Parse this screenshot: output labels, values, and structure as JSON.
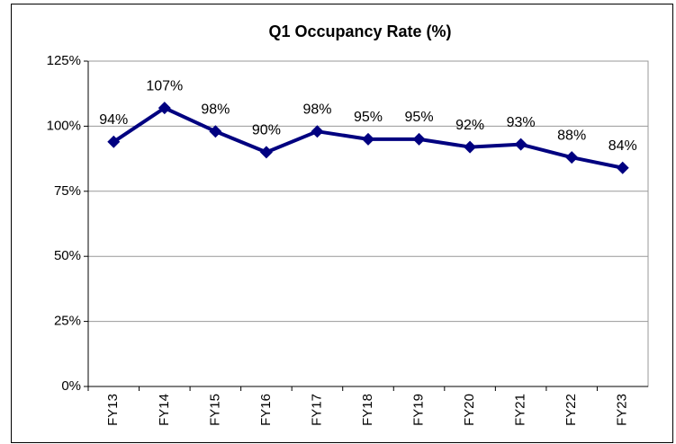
{
  "chart_data": {
    "type": "line",
    "title": "Q1 Occupancy Rate (%)",
    "categories": [
      "FY13",
      "FY14",
      "FY15",
      "FY16",
      "FY17",
      "FY18",
      "FY19",
      "FY20",
      "FY21",
      "FY22",
      "FY23"
    ],
    "series": [
      {
        "name": "Q1 Occupancy Rate",
        "color": "#000080",
        "values": [
          94,
          107,
          98,
          90,
          98,
          95,
          95,
          92,
          93,
          88,
          84
        ],
        "value_labels": [
          "94%",
          "107%",
          "98%",
          "90%",
          "98%",
          "95%",
          "95%",
          "92%",
          "93%",
          "88%",
          "84%"
        ]
      }
    ],
    "ylim": [
      0,
      125
    ],
    "yticks": [
      {
        "value": 0,
        "label": "0%"
      },
      {
        "value": 25,
        "label": "25%"
      },
      {
        "value": 50,
        "label": "50%"
      },
      {
        "value": 75,
        "label": "75%"
      },
      {
        "value": 100,
        "label": "100%"
      },
      {
        "value": 125,
        "label": "125%"
      }
    ],
    "grid": true
  }
}
